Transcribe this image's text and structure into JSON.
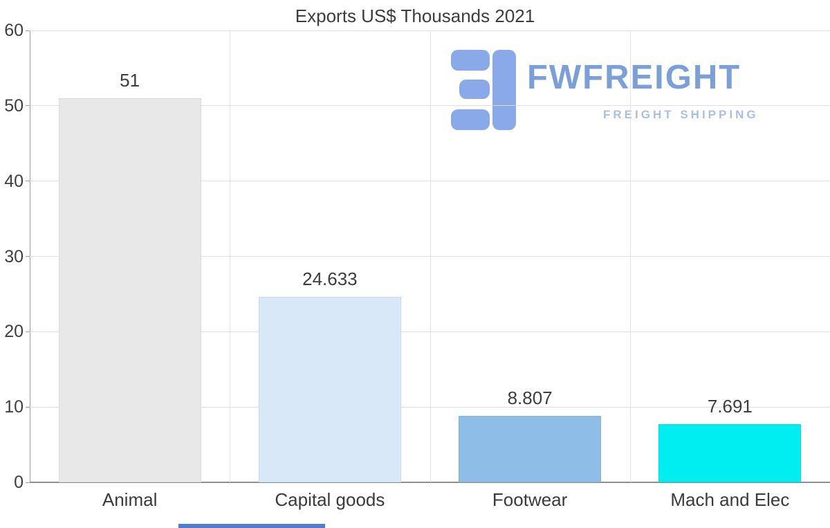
{
  "chart_data": {
    "type": "bar",
    "title": "Exports US$ Thousands 2021",
    "categories": [
      "Animal",
      "Capital goods",
      "Footwear",
      "Mach and Elec"
    ],
    "values": [
      51,
      24.633,
      8.807,
      7.691
    ],
    "value_labels": [
      "51",
      "24.633",
      "8.807",
      "7.691"
    ],
    "bar_colors": [
      "#e8e8e8",
      "#d8e8f8",
      "#8ebde8",
      "#00eef2"
    ],
    "ylim": [
      0,
      60
    ],
    "yticks": [
      0,
      10,
      20,
      30,
      40,
      50,
      60
    ],
    "grid": true,
    "legend": "none",
    "xlabel": "",
    "ylabel": ""
  },
  "watermark": {
    "brand": "FWFREIGHT",
    "tagline": "FREIGHT SHIPPING",
    "brand_color": "#7ba0d8",
    "tagline_color": "#a9bfe4",
    "icon_color": "#8aa9e8"
  },
  "footer": {
    "strip_color": "#4d7cd0"
  }
}
